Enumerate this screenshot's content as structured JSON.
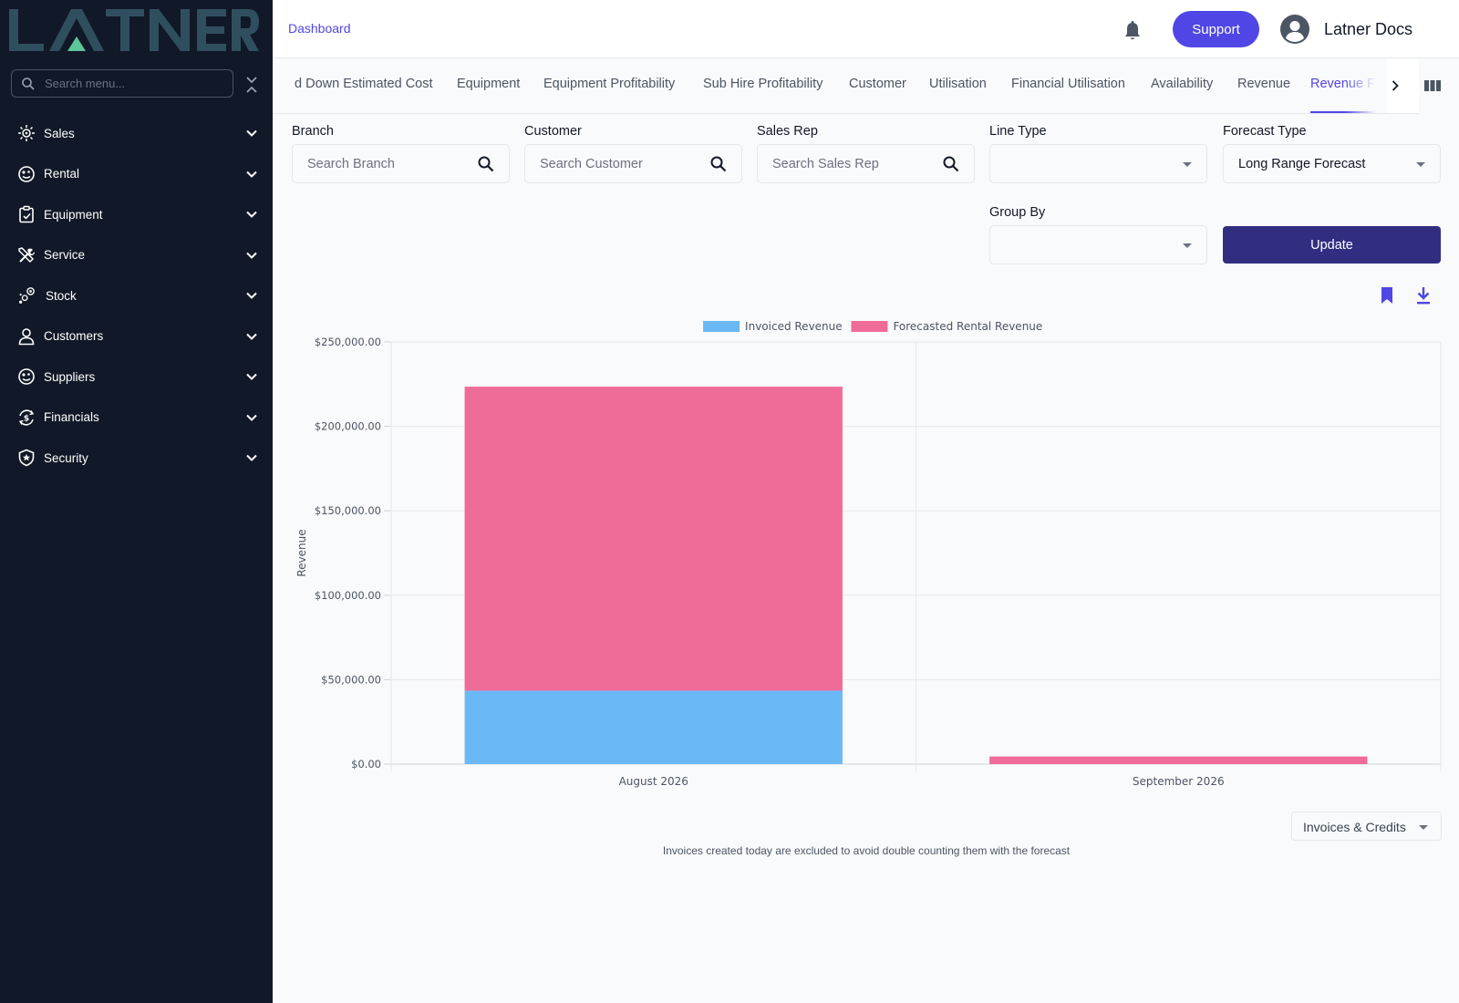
{
  "brand": {
    "logo_text": "LATNER"
  },
  "sidebar": {
    "search_placeholder": "Search menu...",
    "items": [
      {
        "label": "Sales",
        "icon": "sales-icon"
      },
      {
        "label": "Rental",
        "icon": "rental-icon"
      },
      {
        "label": "Equipment",
        "icon": "equipment-icon"
      },
      {
        "label": "Service",
        "icon": "service-icon"
      },
      {
        "label": "Stock",
        "icon": "stock-icon"
      },
      {
        "label": "Customers",
        "icon": "customers-icon"
      },
      {
        "label": "Suppliers",
        "icon": "suppliers-icon"
      },
      {
        "label": "Financials",
        "icon": "financials-icon"
      },
      {
        "label": "Security",
        "icon": "security-icon"
      }
    ]
  },
  "header": {
    "breadcrumb": "Dashboard",
    "support_label": "Support",
    "user_name": "Latner Docs"
  },
  "tabs": [
    {
      "label": "d Down Estimated Cost"
    },
    {
      "label": "Equipment"
    },
    {
      "label": "Equipment Profitability"
    },
    {
      "label": "Sub Hire Profitability"
    },
    {
      "label": "Customer"
    },
    {
      "label": "Utilisation"
    },
    {
      "label": "Financial Utilisation"
    },
    {
      "label": "Availability"
    },
    {
      "label": "Revenue"
    },
    {
      "label": "Revenue Forec",
      "active": true
    }
  ],
  "filters": {
    "branch": {
      "label": "Branch",
      "placeholder": "Search Branch"
    },
    "customer": {
      "label": "Customer",
      "placeholder": "Search Customer"
    },
    "sales_rep": {
      "label": "Sales Rep",
      "placeholder": "Search Sales Rep"
    },
    "line_type": {
      "label": "Line Type",
      "value": ""
    },
    "forecast_type": {
      "label": "Forecast Type",
      "value": "Long Range Forecast"
    },
    "group_by": {
      "label": "Group By",
      "value": ""
    },
    "update_label": "Update"
  },
  "colors": {
    "accent": "#4f46e5",
    "update_button": "#312e81",
    "sidebar_bg": "#111827",
    "invoiced": "#6bb8f6",
    "forecasted": "#ef6b98"
  },
  "chart_data": {
    "type": "bar",
    "stacked": true,
    "categories": [
      "August 2026",
      "September 2026"
    ],
    "series": [
      {
        "name": "Invoiced Revenue",
        "values": [
          43500,
          0
        ]
      },
      {
        "name": "Forecasted Rental Revenue",
        "values": [
          180000,
          4500
        ]
      }
    ],
    "ylabel": "Revenue",
    "ylim": [
      0,
      250000
    ],
    "yticks": [
      "$0.00",
      "$50,000.00",
      "$100,000.00",
      "$150,000.00",
      "$200,000.00",
      "$250,000.00"
    ],
    "ytick_values": [
      0,
      50000,
      100000,
      150000,
      200000,
      250000
    ],
    "legend_position": "top-center",
    "grid": true
  },
  "footer": {
    "invoice_select": "Invoices & Credits",
    "note": "Invoices created today are excluded to avoid double counting them with the forecast"
  }
}
